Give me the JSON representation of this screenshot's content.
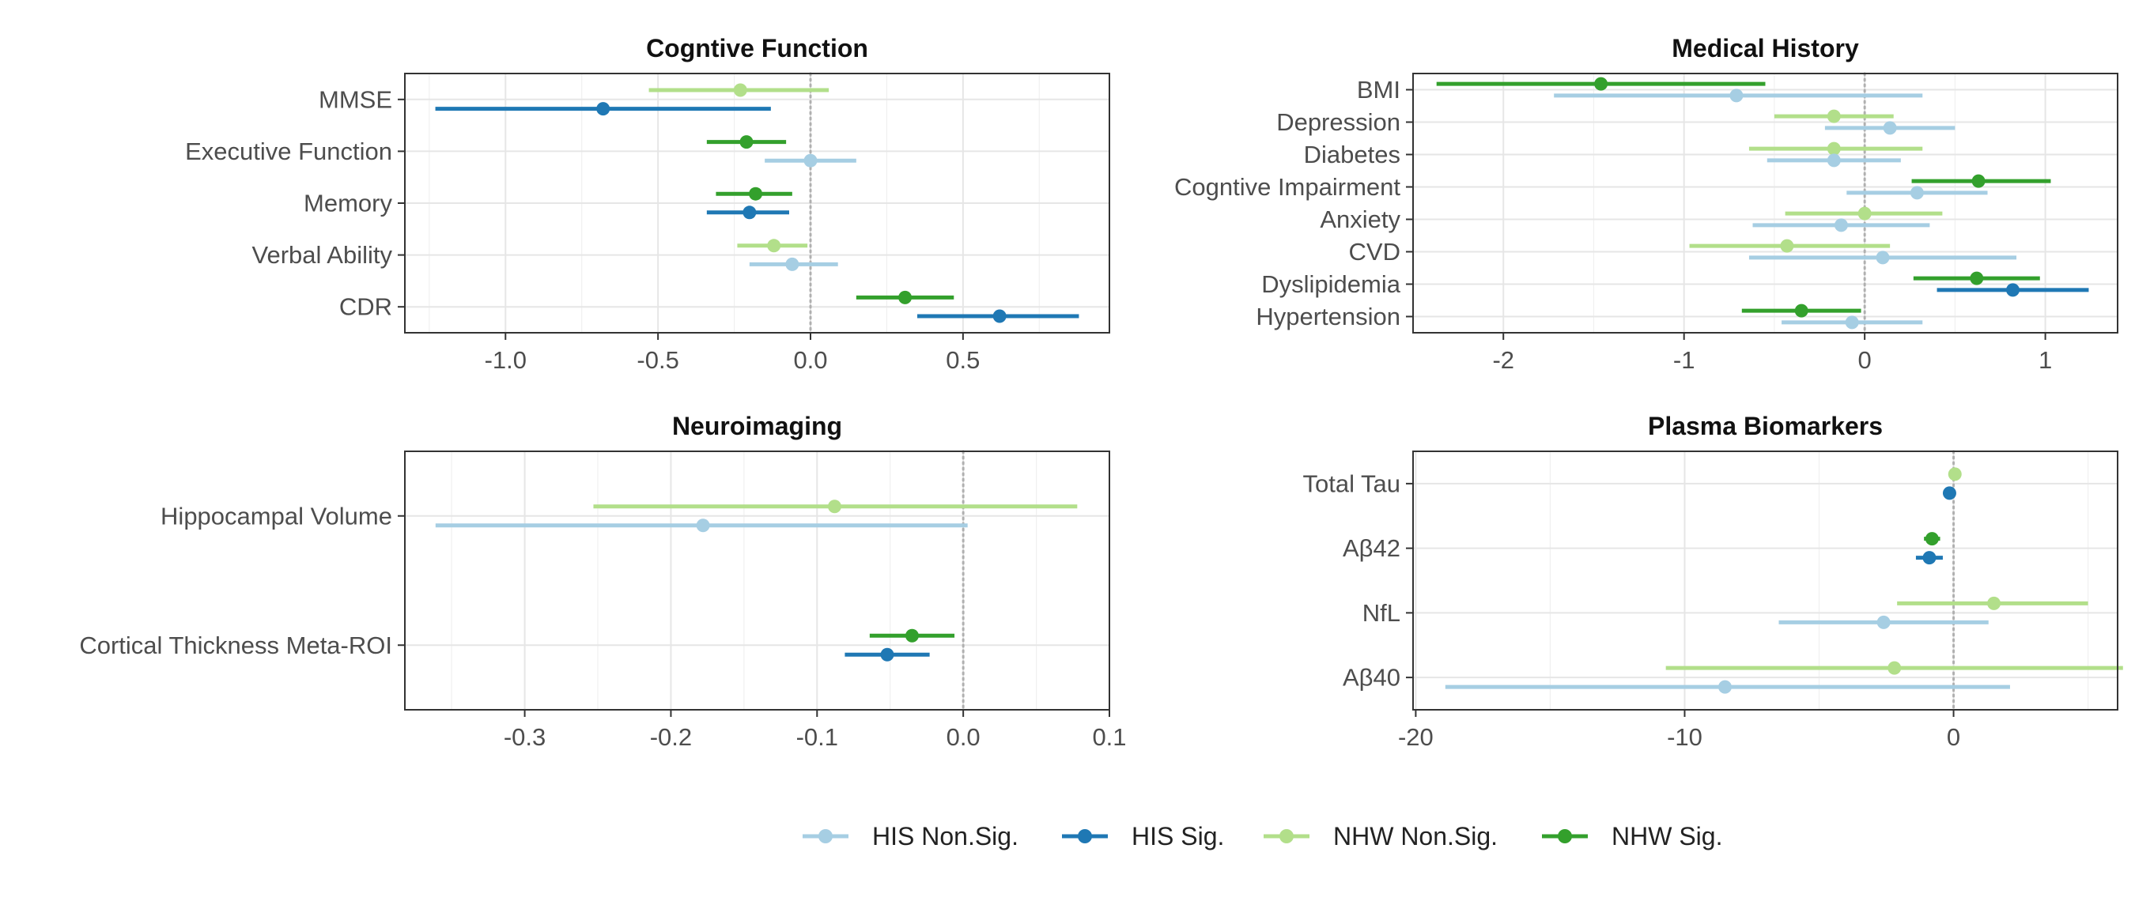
{
  "colors": {
    "HIS Non.Sig.": "#a6cee3",
    "HIS Sig.": "#1f78b4",
    "NHW Non.Sig.": "#b2df8a",
    "NHW Sig.": "#33a02c"
  },
  "legend": {
    "items": [
      {
        "label": "HIS Non.Sig.",
        "color": "#a6cee3"
      },
      {
        "label": "HIS Sig.",
        "color": "#1f78b4"
      },
      {
        "label": "NHW Non.Sig.",
        "color": "#b2df8a"
      },
      {
        "label": "NHW Sig.",
        "color": "#33a02c"
      }
    ]
  },
  "chart_data": [
    {
      "type": "forest",
      "title": "Cogntive Function",
      "xlim": [
        -1.33,
        0.98
      ],
      "xticks": [
        -1.0,
        -0.5,
        0.0,
        0.5
      ],
      "xtick_labels": [
        "-1.0",
        "-0.5",
        "0.0",
        "0.5"
      ],
      "categories": [
        "MMSE",
        "Executive Function",
        "Memory",
        "Verbal Ability",
        "CDR"
      ],
      "series": [
        {
          "name": "NHW",
          "estimate": [
            -0.23,
            -0.21,
            -0.18,
            -0.12,
            0.31
          ],
          "low": [
            -0.53,
            -0.34,
            -0.31,
            -0.24,
            0.15
          ],
          "high": [
            0.06,
            -0.08,
            -0.06,
            -0.01,
            0.47
          ],
          "sig": [
            false,
            true,
            true,
            false,
            true
          ]
        },
        {
          "name": "HIS",
          "estimate": [
            -0.68,
            0.0,
            -0.2,
            -0.06,
            0.62
          ],
          "low": [
            -1.23,
            -0.15,
            -0.34,
            -0.2,
            0.35
          ],
          "high": [
            -0.13,
            0.15,
            -0.07,
            0.09,
            0.88
          ],
          "sig": [
            true,
            false,
            true,
            false,
            true
          ]
        }
      ],
      "grid": true
    },
    {
      "type": "forest",
      "title": "Medical History",
      "xlim": [
        -2.5,
        1.4
      ],
      "xticks": [
        -2,
        -1,
        0,
        1
      ],
      "xtick_labels": [
        "-2",
        "-1",
        "0",
        "1"
      ],
      "categories": [
        "BMI",
        "Depression",
        "Diabetes",
        "Cogntive Impairment",
        "Anxiety",
        "CVD",
        "Dyslipidemia",
        "Hypertension"
      ],
      "series": [
        {
          "name": "NHW",
          "estimate": [
            -1.46,
            -0.17,
            -0.17,
            0.63,
            0.0,
            -0.43,
            0.62,
            -0.35
          ],
          "low": [
            -2.37,
            -0.5,
            -0.64,
            0.26,
            -0.44,
            -0.97,
            0.27,
            -0.68
          ],
          "high": [
            -0.55,
            0.16,
            0.32,
            1.03,
            0.43,
            0.14,
            0.97,
            -0.02
          ],
          "sig": [
            true,
            false,
            false,
            true,
            false,
            false,
            true,
            true
          ]
        },
        {
          "name": "HIS",
          "estimate": [
            -0.71,
            0.14,
            -0.17,
            0.29,
            -0.13,
            0.1,
            0.82,
            -0.07
          ],
          "low": [
            -1.72,
            -0.22,
            -0.54,
            -0.1,
            -0.62,
            -0.64,
            0.4,
            -0.46
          ],
          "high": [
            0.32,
            0.5,
            0.2,
            0.68,
            0.36,
            0.84,
            1.24,
            0.32
          ],
          "sig": [
            false,
            false,
            false,
            false,
            false,
            false,
            true,
            false
          ]
        }
      ],
      "grid": true
    },
    {
      "type": "forest",
      "title": "Neuroimaging",
      "xlim": [
        -0.382,
        0.1
      ],
      "xticks": [
        -0.3,
        -0.2,
        -0.1,
        0.0,
        0.1
      ],
      "xtick_labels": [
        "-0.3",
        "-0.2",
        "-0.1",
        "0.0",
        "0.1"
      ],
      "categories": [
        "Hippocampal Volume",
        "Cortical Thickness Meta-ROI"
      ],
      "series": [
        {
          "name": "NHW",
          "estimate": [
            -0.088,
            -0.035
          ],
          "low": [
            -0.253,
            -0.064
          ],
          "high": [
            0.078,
            -0.006
          ],
          "sig": [
            false,
            true
          ]
        },
        {
          "name": "HIS",
          "estimate": [
            -0.178,
            -0.052
          ],
          "low": [
            -0.361,
            -0.081
          ],
          "high": [
            0.003,
            -0.023
          ],
          "sig": [
            false,
            true
          ]
        }
      ],
      "grid": true
    },
    {
      "type": "forest",
      "title": "Plasma Biomarkers",
      "xlim": [
        -20.1,
        6.1
      ],
      "xticks": [
        -20,
        -10,
        0
      ],
      "xtick_labels": [
        "-20",
        "-10",
        "0"
      ],
      "categories": [
        "Total Tau",
        "Aβ42",
        "NfL",
        "Aβ40"
      ],
      "series": [
        {
          "name": "NHW",
          "estimate": [
            0.05,
            -0.8,
            1.5,
            -2.2
          ],
          "low": [
            -0.05,
            -1.1,
            -2.1,
            -10.7
          ],
          "high": [
            0.15,
            -0.5,
            5.0,
            6.3
          ],
          "sig": [
            false,
            true,
            false,
            false
          ]
        },
        {
          "name": "HIS",
          "estimate": [
            -0.15,
            -0.9,
            -2.6,
            -8.5
          ],
          "low": [
            -0.25,
            -1.4,
            -6.5,
            -18.9
          ],
          "high": [
            -0.05,
            -0.4,
            1.3,
            2.1
          ],
          "sig": [
            true,
            true,
            false,
            false
          ]
        }
      ],
      "grid": true
    }
  ]
}
